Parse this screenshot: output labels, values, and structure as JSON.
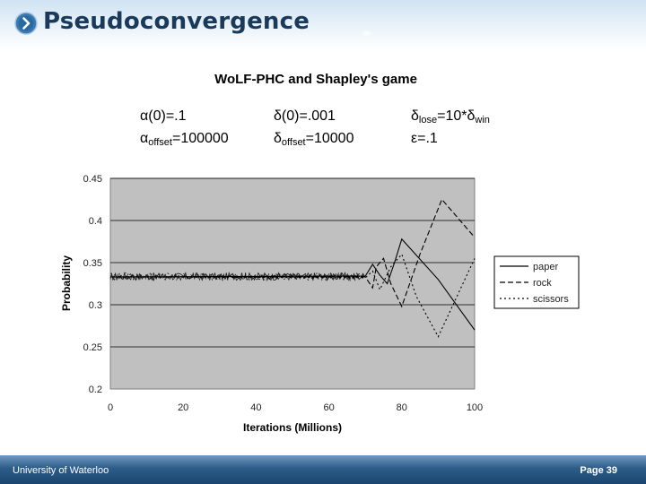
{
  "header": {
    "title": "Pseudoconvergence"
  },
  "footer": {
    "left_text": "University of Waterloo",
    "right_text": "Page 39"
  },
  "colors": {
    "header_text": "#1a3a5c",
    "plot_bg": "#c0c0c0",
    "footer": "#2c5d88"
  },
  "params": [
    {
      "sym": "α(0)",
      "sub": "",
      "rest": "=.1"
    },
    {
      "sym": "δ(0)",
      "sub": "",
      "rest": "=.001"
    },
    {
      "sym": "δ",
      "sub": "lose",
      "rest": "=10*δ",
      "sub2": "win"
    },
    {
      "sym": "α",
      "sub": "offset",
      "rest": "=100000"
    },
    {
      "sym": "δ",
      "sub": "offset",
      "rest": "=10000"
    },
    {
      "sym": "ε",
      "sub": "",
      "rest": "=.1"
    }
  ],
  "chart_data": {
    "type": "line",
    "title": "WoLF-PHC and Shapley's game",
    "xlabel": "Iterations (Millions)",
    "ylabel": "Probability",
    "xlim": [
      0,
      100
    ],
    "ylim": [
      0.2,
      0.45
    ],
    "x_ticks": [
      "0",
      "20",
      "40",
      "60",
      "80",
      "100"
    ],
    "y_ticks": [
      "0.2",
      "0.25",
      "0.3",
      "0.35",
      "0.4",
      "0.45"
    ],
    "grid": "horizontal",
    "legend_position": "right",
    "legend": [
      "paper",
      "rock",
      "scissors"
    ],
    "series": [
      {
        "name": "paper",
        "style": "solid",
        "x": [
          0,
          70,
          72,
          74,
          76,
          78,
          80,
          90,
          100
        ],
        "y": [
          0.333,
          0.334,
          0.348,
          0.335,
          0.325,
          0.35,
          0.378,
          0.33,
          0.27
        ]
      },
      {
        "name": "rock",
        "style": "dashed",
        "x": [
          0,
          70,
          72,
          73,
          75,
          77,
          80,
          85,
          91,
          100
        ],
        "y": [
          0.333,
          0.333,
          0.32,
          0.345,
          0.355,
          0.325,
          0.298,
          0.36,
          0.425,
          0.38
        ]
      },
      {
        "name": "scissors",
        "style": "dotted",
        "x": [
          0,
          70,
          72,
          74,
          77,
          80,
          84,
          90,
          100
        ],
        "y": [
          0.333,
          0.332,
          0.34,
          0.318,
          0.345,
          0.36,
          0.31,
          0.262,
          0.355
        ]
      }
    ]
  }
}
